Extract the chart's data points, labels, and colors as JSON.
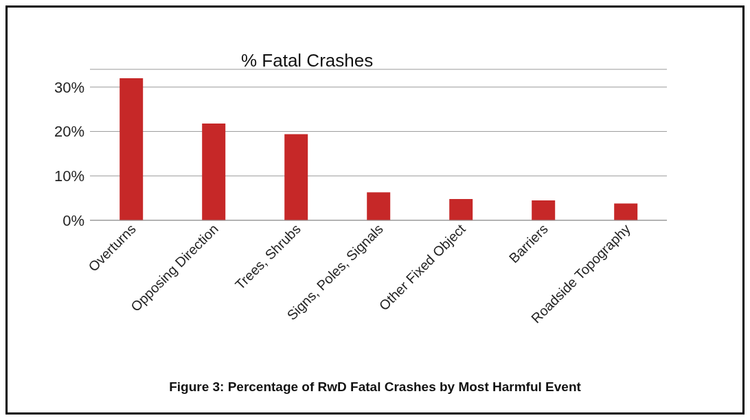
{
  "chart_data": {
    "type": "bar",
    "title": "% Fatal Crashes",
    "categories": [
      "Overturns",
      "Opposing Direction",
      "Trees, Shrubs",
      "Signs, Poles, Signals",
      "Other Fixed Object",
      "Barriers",
      "Roadside Topography"
    ],
    "values": [
      32,
      21.8,
      19.4,
      6.3,
      4.8,
      4.5,
      3.8
    ],
    "color": "#c62828",
    "ylim": [
      0,
      34
    ],
    "yticks": [
      {
        "value": 0,
        "label": "0%"
      },
      {
        "value": 10,
        "label": "10%"
      },
      {
        "value": 20,
        "label": "20%"
      },
      {
        "value": 30,
        "label": "30%"
      }
    ],
    "grid": "y",
    "legend": false,
    "annotations": [
      "Figure 3: Percentage of RwD Fatal Crashes by Most Harmful Event"
    ]
  }
}
